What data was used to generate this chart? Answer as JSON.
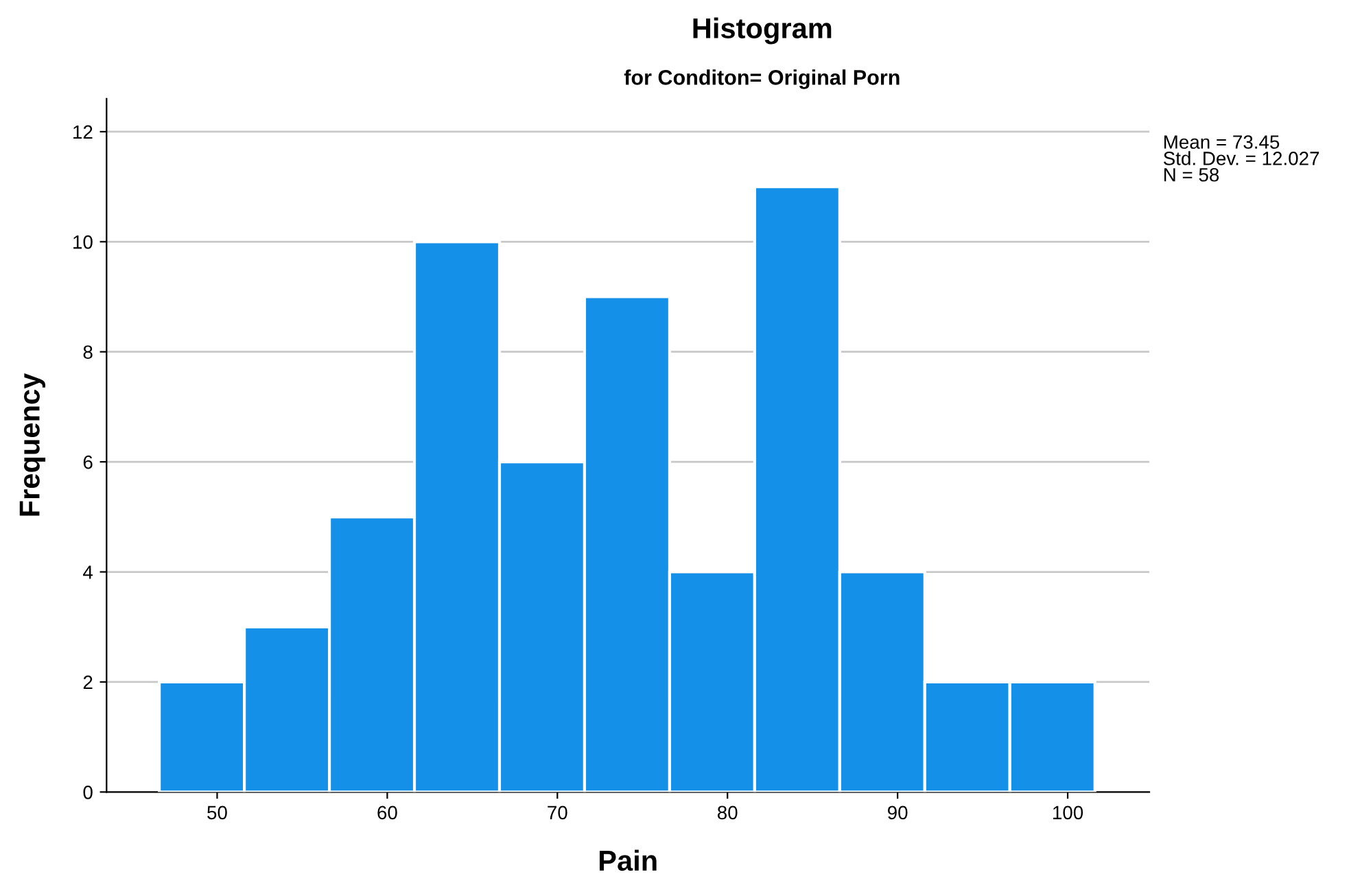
{
  "chart_data": {
    "type": "histogram",
    "title": "Histogram",
    "subtitle": "for Conditon= Original Porn",
    "xlabel": "Pain",
    "ylabel": "Frequency",
    "bins": [
      46.6,
      51.6,
      56.6,
      61.6,
      66.6,
      71.6,
      76.6,
      81.6,
      86.6,
      91.6,
      96.6,
      101.6
    ],
    "values": [
      2,
      3,
      5,
      10,
      6,
      9,
      4,
      11,
      4,
      2,
      2
    ],
    "color": "#1590e8",
    "xlim": [
      43.5,
      104.8
    ],
    "xticks": [
      50,
      60,
      70,
      80,
      90,
      100
    ],
    "ylim": [
      0,
      12.6
    ],
    "yticks": [
      0,
      2,
      4,
      6,
      8,
      10,
      12
    ],
    "grid": "y",
    "annotations": [
      "Mean = 73.45\nStd. Dev. = 12.027\nN = 58"
    ]
  }
}
